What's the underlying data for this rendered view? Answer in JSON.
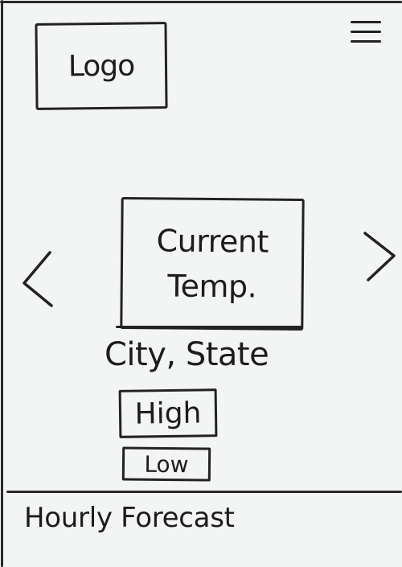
{
  "header": {
    "logo_label": "Logo",
    "menu_icon": "hamburger-menu-icon"
  },
  "weather": {
    "current_temp_line1": "Current",
    "current_temp_line2": "Temp.",
    "location": "City, State",
    "high_label": "High",
    "low_label": "Low",
    "prev_icon": "chevron-left-icon",
    "next_icon": "chevron-right-icon"
  },
  "forecast": {
    "hourly_label": "Hourly Forecast"
  }
}
